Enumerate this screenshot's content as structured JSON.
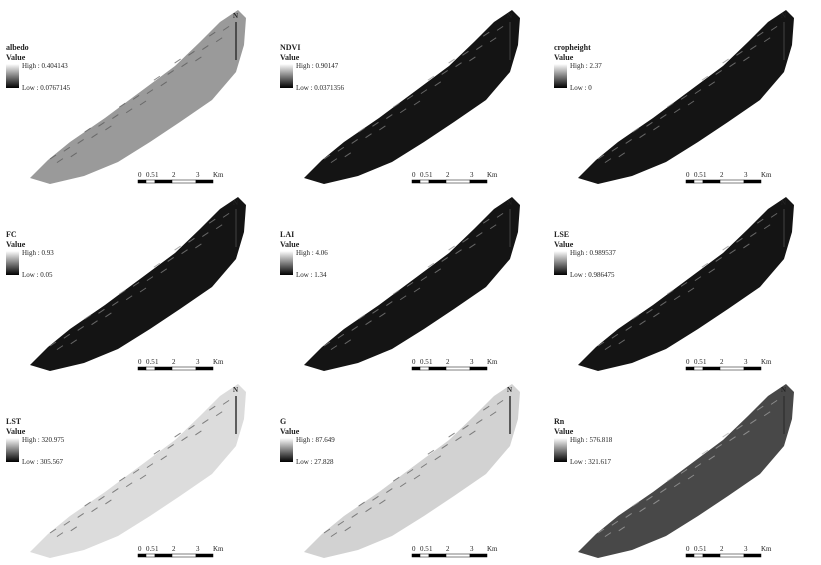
{
  "legend_heading": "Value",
  "north": "N",
  "scale_labels": [
    "0",
    "0.5",
    "1",
    "2",
    "3",
    "Km"
  ],
  "panels": [
    {
      "title": "albedo",
      "high": "High : 0.404143",
      "low": "Low : 0.0767145",
      "color": "#9a9a9a"
    },
    {
      "title": "NDVI",
      "high": "High : 0.90147",
      "low": "Low : 0.0371356",
      "color": "#141414"
    },
    {
      "title": "cropheight",
      "high": "High : 2.37",
      "low": "Low : 0",
      "color": "#141414"
    },
    {
      "title": "FC",
      "high": "High : 0.93",
      "low": "Low : 0.05",
      "color": "#141414"
    },
    {
      "title": "LAI",
      "high": "High : 4.06",
      "low": "Low : 1.34",
      "color": "#141414"
    },
    {
      "title": "LSE",
      "high": "High : 0.989537",
      "low": "Low : 0.986475",
      "color": "#141414"
    },
    {
      "title": "LST",
      "high": "High : 320.975",
      "low": "Low : 305.567",
      "color": "#dcdcdc"
    },
    {
      "title": "G",
      "high": "High : 87.649",
      "low": "Low : 27.828",
      "color": "#d2d2d2"
    },
    {
      "title": "Rn",
      "high": "High : 576.818",
      "low": "Low : 321.617",
      "color": "#484848"
    }
  ]
}
